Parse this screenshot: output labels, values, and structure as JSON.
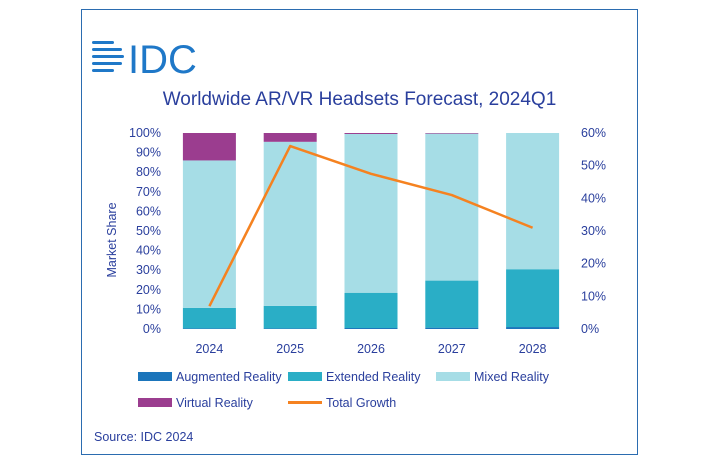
{
  "logo_text": "IDC",
  "source": "Source: IDC 2024",
  "chart_data": {
    "type": "bar",
    "stacked": true,
    "title": "Worldwide AR/VR Headsets Forecast, 2024Q1",
    "ylabel": "Market Share",
    "categories": [
      "2024",
      "2025",
      "2026",
      "2027",
      "2028"
    ],
    "ylim": [
      0,
      100
    ],
    "y_ticks": [
      "0%",
      "10%",
      "20%",
      "30%",
      "40%",
      "50%",
      "60%",
      "70%",
      "80%",
      "90%",
      "100%"
    ],
    "y2lim": [
      0,
      60
    ],
    "y2_ticks": [
      "0%",
      "10%",
      "20%",
      "30%",
      "40%",
      "50%",
      "60%"
    ],
    "series": [
      {
        "name": "Augmented Reality",
        "values": [
          0.3,
          0.3,
          0.5,
          0.7,
          1.0
        ],
        "color": "#1b75bb"
      },
      {
        "name": "Extended Reality",
        "values": [
          10.5,
          11.5,
          18,
          24,
          29.5
        ],
        "color": "#2aaec6"
      },
      {
        "name": "Mixed Reality",
        "values": [
          75.2,
          83.7,
          81,
          75,
          69.5
        ],
        "color": "#a6dde6"
      },
      {
        "name": "Virtual Reality",
        "values": [
          14,
          4.5,
          0.5,
          0.3,
          0
        ],
        "color": "#9b3d8f"
      }
    ],
    "line": {
      "name": "Total Growth",
      "axis": "right",
      "values": [
        7,
        56,
        47.5,
        41,
        31
      ],
      "color": "#f58220"
    },
    "grid": false,
    "legend": "bottom"
  }
}
